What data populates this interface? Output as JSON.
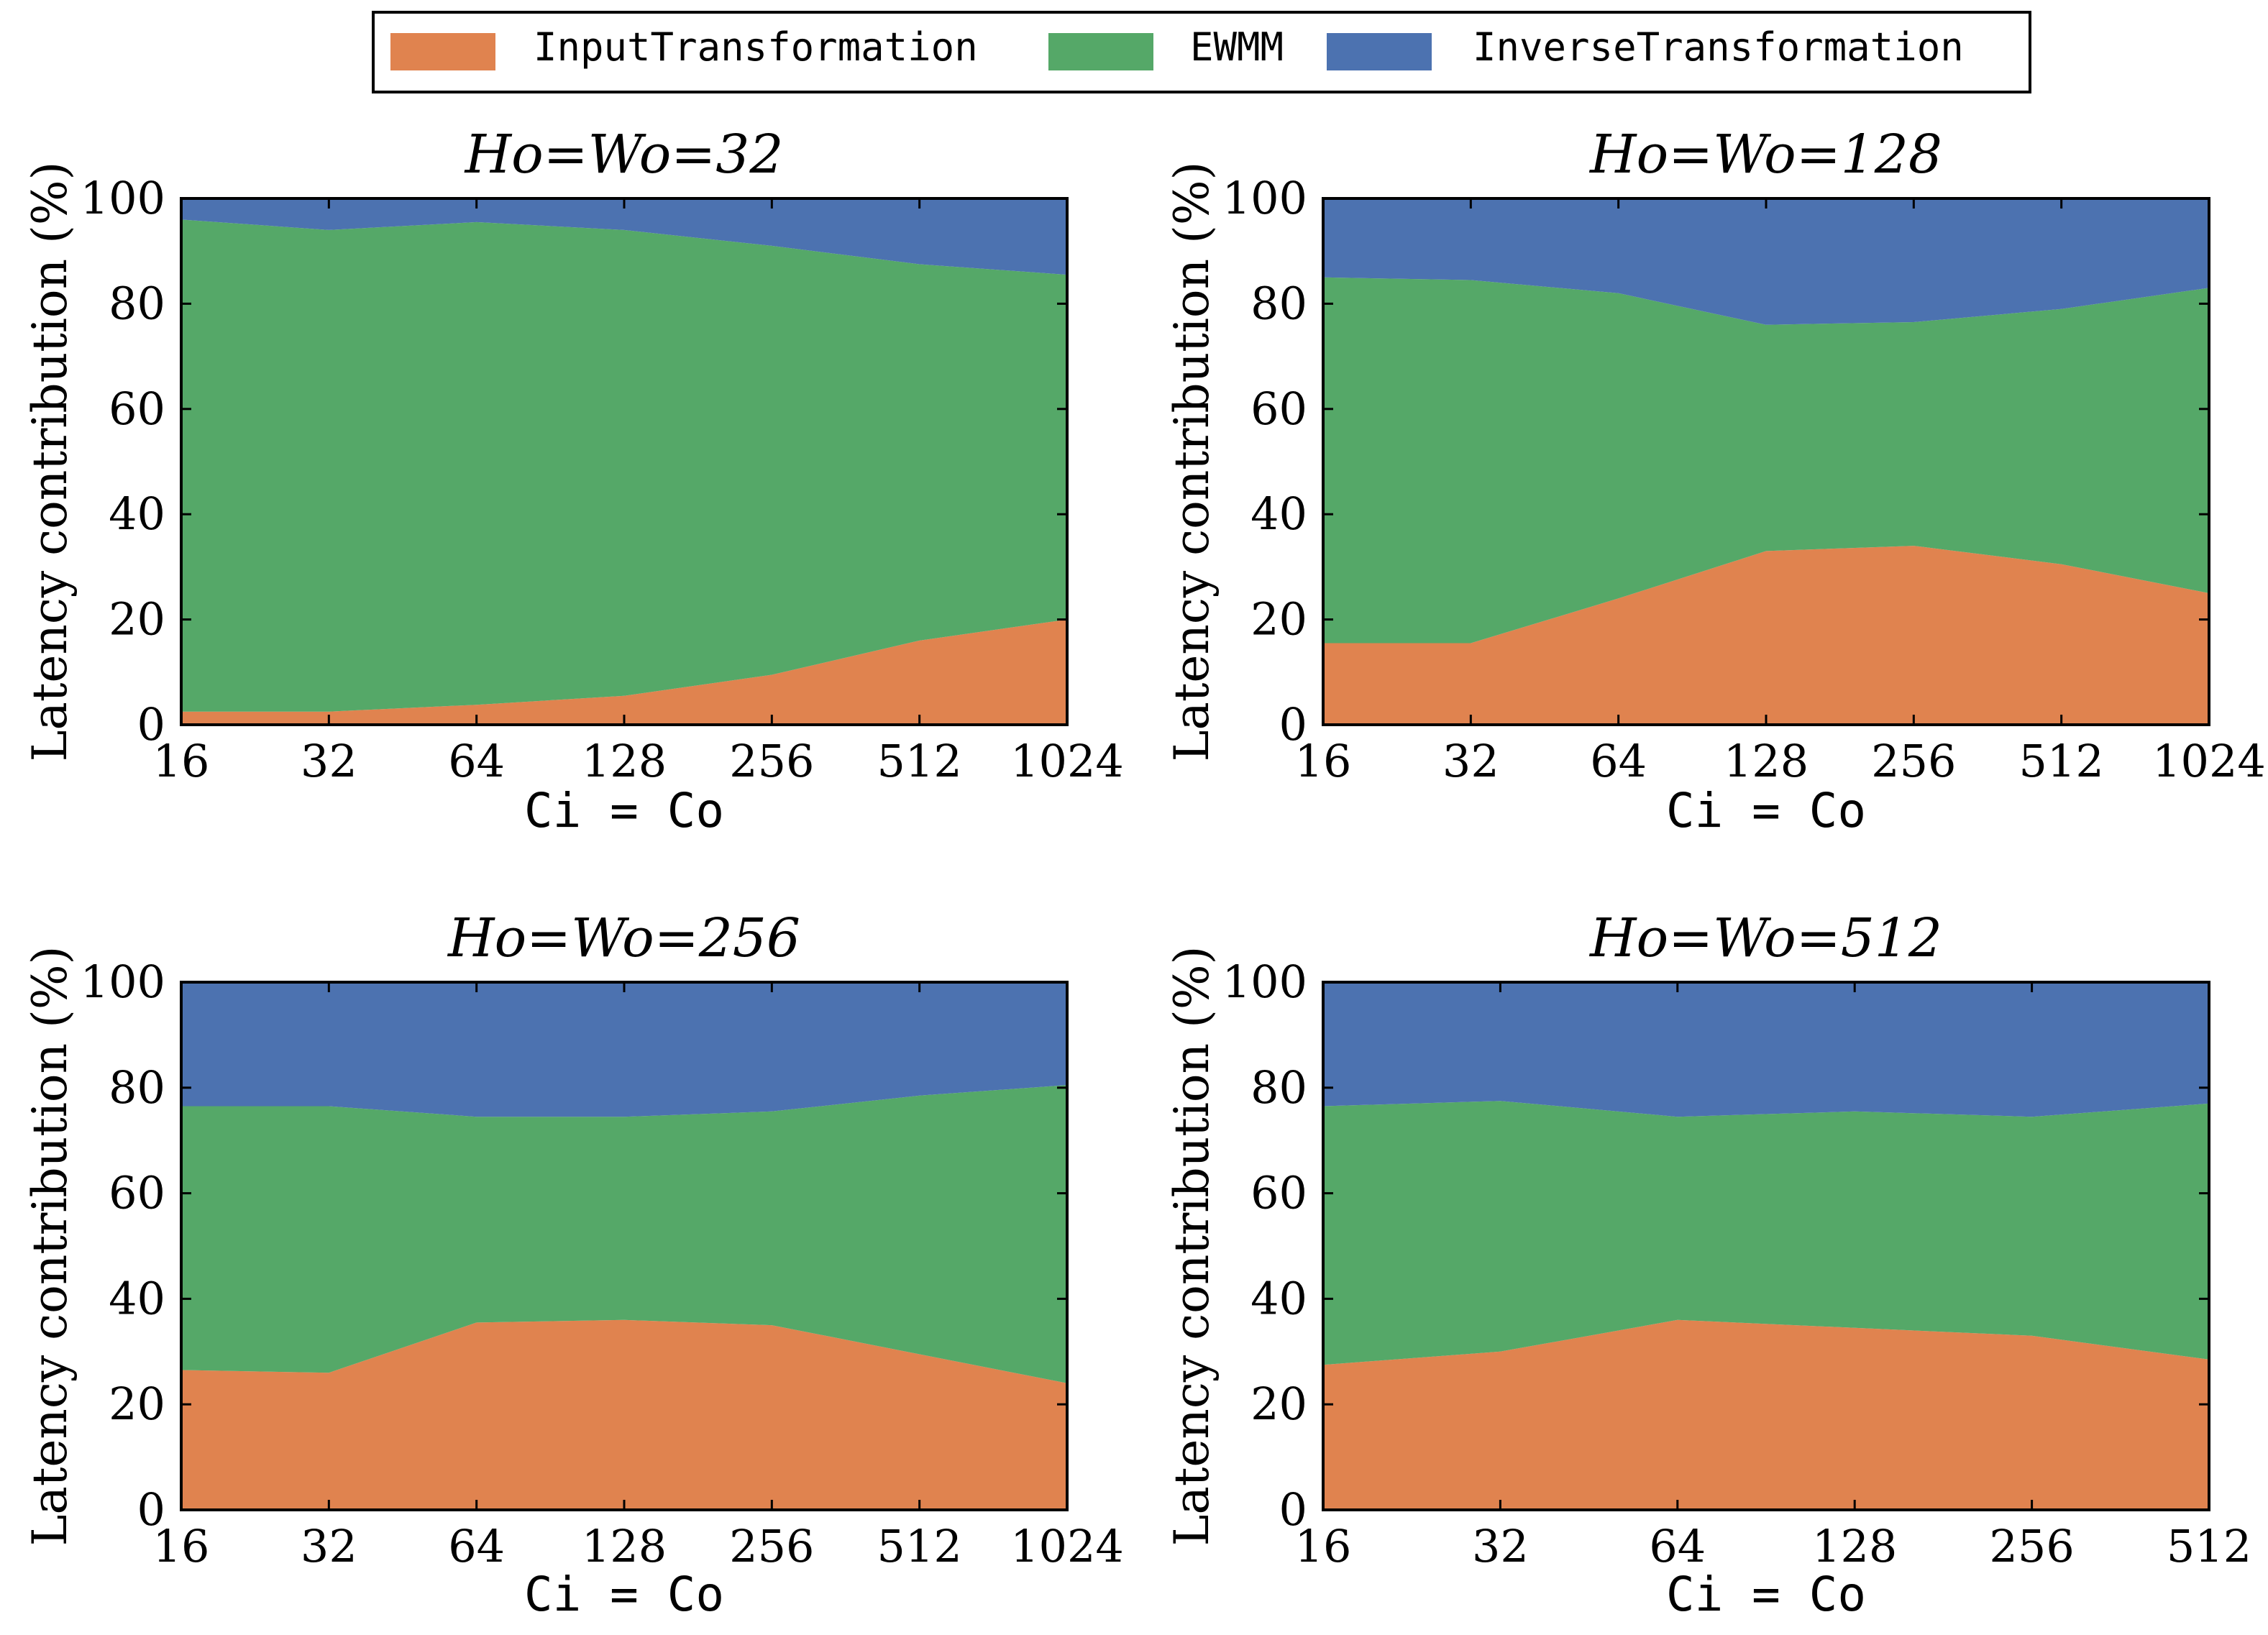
{
  "colors": {
    "input": "#e0834f",
    "ewmm": "#55a868",
    "inverse": "#4c72b0"
  },
  "legend": {
    "items": [
      {
        "label": "InputTransformation",
        "color": "#e0834f"
      },
      {
        "label": "EWMM",
        "color": "#55a868"
      },
      {
        "label": "InverseTransformation",
        "color": "#4c72b0"
      }
    ]
  },
  "chart_data": [
    {
      "type": "area",
      "stacked": true,
      "title": "Ho=Wo=32",
      "xlabel": "Ci = Co",
      "ylabel": "Latency contribution (%)",
      "ylim": [
        0,
        100
      ],
      "yticks": [
        0,
        20,
        40,
        60,
        80,
        100
      ],
      "categories": [
        "16",
        "32",
        "64",
        "128",
        "256",
        "512",
        "1024"
      ],
      "series": [
        {
          "name": "InputTransformation",
          "values": [
            2.5,
            2.5,
            3.8,
            5.5,
            9.5,
            16,
            20
          ]
        },
        {
          "name": "EWMM",
          "values": [
            93.5,
            91.5,
            91.7,
            88.5,
            81.5,
            71.5,
            65.5
          ]
        },
        {
          "name": "InverseTransformation",
          "values": [
            4,
            6,
            4.5,
            6,
            9,
            12.5,
            14.5
          ]
        }
      ]
    },
    {
      "type": "area",
      "stacked": true,
      "title": "Ho=Wo=128",
      "xlabel": "Ci = Co",
      "ylabel": "Latency contribution (%)",
      "ylim": [
        0,
        100
      ],
      "yticks": [
        0,
        20,
        40,
        60,
        80,
        100
      ],
      "categories": [
        "16",
        "32",
        "64",
        "128",
        "256",
        "512",
        "1024"
      ],
      "series": [
        {
          "name": "InputTransformation",
          "values": [
            15.5,
            15.5,
            24,
            33,
            34,
            30.5,
            25
          ]
        },
        {
          "name": "EWMM",
          "values": [
            69.5,
            69,
            58,
            43,
            42.5,
            48.5,
            58
          ]
        },
        {
          "name": "InverseTransformation",
          "values": [
            15,
            15.5,
            18,
            24,
            23.5,
            21,
            17
          ]
        }
      ]
    },
    {
      "type": "area",
      "stacked": true,
      "title": "Ho=Wo=256",
      "xlabel": "Ci = Co",
      "ylabel": "Latency contribution (%)",
      "ylim": [
        0,
        100
      ],
      "yticks": [
        0,
        20,
        40,
        60,
        80,
        100
      ],
      "categories": [
        "16",
        "32",
        "64",
        "128",
        "256",
        "512",
        "1024"
      ],
      "series": [
        {
          "name": "InputTransformation",
          "values": [
            26.5,
            26,
            35.5,
            36,
            35,
            29.5,
            24
          ]
        },
        {
          "name": "EWMM",
          "values": [
            50,
            50.5,
            39,
            38.5,
            40.5,
            49,
            56.5
          ]
        },
        {
          "name": "InverseTransformation",
          "values": [
            23.5,
            23.5,
            25.5,
            25.5,
            24.5,
            21.5,
            19.5
          ]
        }
      ]
    },
    {
      "type": "area",
      "stacked": true,
      "title": "Ho=Wo=512",
      "xlabel": "Ci = Co",
      "ylabel": "Latency contribution (%)",
      "ylim": [
        0,
        100
      ],
      "yticks": [
        0,
        20,
        40,
        60,
        80,
        100
      ],
      "categories": [
        "16",
        "32",
        "64",
        "128",
        "256",
        "512"
      ],
      "series": [
        {
          "name": "InputTransformation",
          "values": [
            27.5,
            30,
            36,
            34.5,
            33,
            28.5
          ]
        },
        {
          "name": "EWMM",
          "values": [
            49,
            47.5,
            38.5,
            41,
            41.5,
            48.5
          ]
        },
        {
          "name": "InverseTransformation",
          "values": [
            23.5,
            22.5,
            25.5,
            24.5,
            25.5,
            23
          ]
        }
      ]
    }
  ]
}
